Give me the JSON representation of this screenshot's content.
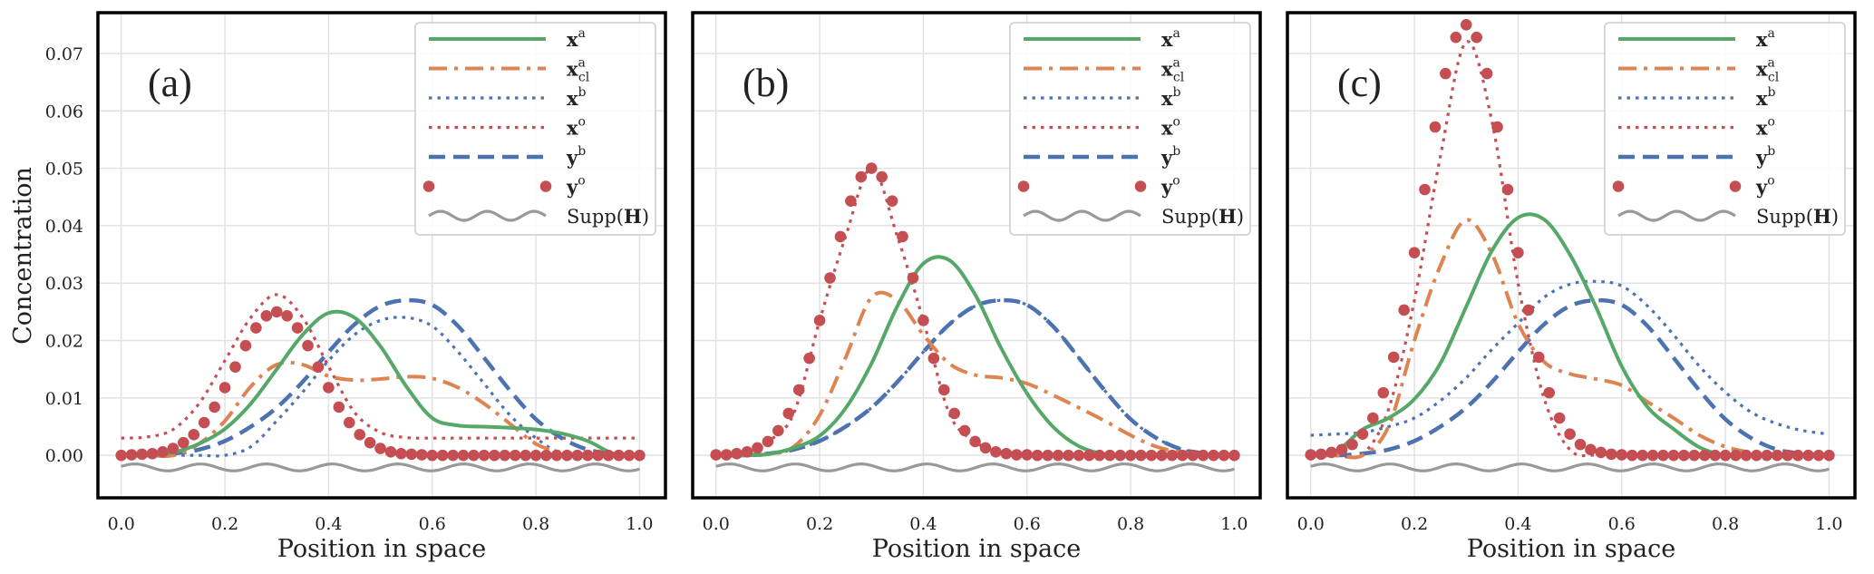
{
  "figure": {
    "ylabel": "Concentration",
    "xlabel": "Position in space"
  },
  "colors": {
    "x_a": "#55a868",
    "x_a_cl": "#dd8452",
    "x_b": "#4c72b0",
    "x_o": "#c44e52",
    "y_b": "#4c72b0",
    "y_o": "#c44e52",
    "supp": "#999999",
    "grid": "#e2e2e2",
    "frame": "#000000"
  },
  "legend": {
    "placement": "top-right",
    "entries": [
      {
        "key": "x_a",
        "base": "x",
        "sup": "a",
        "sub": "",
        "style": "solid"
      },
      {
        "key": "x_a_cl",
        "base": "x",
        "sup": "a",
        "sub": "cl",
        "style": "dashdot"
      },
      {
        "key": "x_b",
        "base": "x",
        "sup": "b",
        "sub": "",
        "style": "dotted"
      },
      {
        "key": "x_o",
        "base": "x",
        "sup": "o",
        "sub": "",
        "style": "dotted"
      },
      {
        "key": "y_b",
        "base": "y",
        "sup": "b",
        "sub": "",
        "style": "dashed"
      },
      {
        "key": "y_o",
        "base": "y",
        "sup": "o",
        "sub": "",
        "style": "markers"
      },
      {
        "key": "supp",
        "prefix": "Supp(",
        "base": "H",
        "suffix": ")",
        "style": "wavy"
      }
    ]
  },
  "chart_data": [
    {
      "type": "line",
      "panel_label": "(a)",
      "xlabel": "Position in space",
      "ylabel": "Concentration",
      "xlim": [
        -0.045,
        1.05
      ],
      "ylim": [
        -0.0074,
        0.0771
      ],
      "grid": true,
      "xticks": [
        "0.0",
        "0.2",
        "0.4",
        "0.6",
        "0.8",
        "1.0"
      ],
      "yticks": [
        "0.00",
        "0.01",
        "0.02",
        "0.03",
        "0.04",
        "0.05",
        "0.06",
        "0.07"
      ],
      "x": [
        0,
        0.05,
        0.1,
        0.15,
        0.2,
        0.25,
        0.3,
        0.35,
        0.4,
        0.45,
        0.5,
        0.55,
        0.6,
        0.65,
        0.7,
        0.75,
        0.8,
        0.85,
        0.9,
        0.95,
        1.0
      ],
      "series": [
        {
          "key": "x_a",
          "name": "x^a",
          "y": [
            0,
            0,
            0.0005,
            0.002,
            0.0046,
            0.009,
            0.015,
            0.021,
            0.0248,
            0.024,
            0.019,
            0.012,
            0.0065,
            0.0052,
            0.005,
            0.0048,
            0.0045,
            0.0038,
            0.0025,
            0.0003,
            0
          ]
        },
        {
          "key": "x_a_cl",
          "name": "x^a_cl",
          "y": [
            0,
            0,
            0,
            0.002,
            0.006,
            0.012,
            0.0158,
            0.0158,
            0.0138,
            0.0131,
            0.0133,
            0.0137,
            0.0134,
            0.0118,
            0.009,
            0.0055,
            0.002,
            0.0005,
            0,
            0,
            0
          ]
        },
        {
          "key": "x_b",
          "name": "x^b",
          "y": [
            0,
            0,
            0,
            0,
            0,
            0.0015,
            0.006,
            0.011,
            0.0165,
            0.021,
            0.0235,
            0.024,
            0.0225,
            0.018,
            0.0125,
            0.007,
            0.003,
            0.0003,
            0,
            0,
            0
          ]
        },
        {
          "key": "x_o",
          "name": "x^o",
          "y": [
            0.003,
            0.0032,
            0.0045,
            0.009,
            0.0165,
            0.024,
            0.028,
            0.024,
            0.0155,
            0.0075,
            0.004,
            0.0031,
            0.003,
            0.003,
            0.003,
            0.003,
            0.003,
            0.003,
            0.003,
            0.003,
            0.003
          ]
        },
        {
          "key": "y_b",
          "name": "y^b",
          "y": [
            0,
            0,
            0.0003,
            0.001,
            0.0025,
            0.005,
            0.0083,
            0.0128,
            0.018,
            0.0228,
            0.026,
            0.027,
            0.0262,
            0.0225,
            0.017,
            0.0113,
            0.0063,
            0.003,
            0.001,
            0.0003,
            0
          ]
        },
        {
          "key": "y_o",
          "name": "y^o",
          "x": [
            0,
            0.02,
            0.04,
            0.06,
            0.08,
            0.1,
            0.12,
            0.14,
            0.16,
            0.18,
            0.2,
            0.22,
            0.24,
            0.26,
            0.28,
            0.3,
            0.32,
            0.34,
            0.36,
            0.38,
            0.4,
            0.42,
            0.44,
            0.46,
            0.48,
            0.5,
            0.52,
            0.54,
            0.56,
            0.58,
            0.6,
            0.62,
            0.64,
            0.66,
            0.68,
            0.7,
            0.72,
            0.74,
            0.76,
            0.78,
            0.8,
            0.82,
            0.84,
            0.86,
            0.88,
            0.9,
            0.92,
            0.94,
            0.96,
            0.98,
            1.0
          ],
          "y": [
            0,
            0.0001,
            0.0002,
            0.0003,
            0.0006,
            0.0012,
            0.0022,
            0.0036,
            0.0057,
            0.0084,
            0.0118,
            0.0154,
            0.0191,
            0.0222,
            0.0243,
            0.025,
            0.0243,
            0.0222,
            0.0191,
            0.0154,
            0.0118,
            0.0084,
            0.0057,
            0.0036,
            0.0022,
            0.0012,
            0.0006,
            0.0003,
            0.0002,
            0.0001,
            0,
            0,
            0,
            0,
            0,
            0,
            0,
            0,
            0,
            0,
            0,
            0,
            0,
            0,
            0,
            0,
            0,
            0,
            0,
            0,
            0
          ]
        },
        {
          "key": "supp",
          "name": "Supp(H)",
          "x_range": [
            0,
            1
          ],
          "y_center": -0.0021,
          "amplitude": 0.0006,
          "period": 0.127
        }
      ]
    },
    {
      "type": "line",
      "panel_label": "(b)",
      "xlabel": "Position in space",
      "xlim": [
        -0.045,
        1.05
      ],
      "ylim": [
        -0.0074,
        0.0771
      ],
      "grid": true,
      "xticks": [
        "0.0",
        "0.2",
        "0.4",
        "0.6",
        "0.8",
        "1.0"
      ],
      "x": [
        0,
        0.05,
        0.1,
        0.15,
        0.2,
        0.25,
        0.3,
        0.35,
        0.4,
        0.45,
        0.5,
        0.55,
        0.6,
        0.65,
        0.7,
        0.75,
        0.8,
        0.85,
        0.9,
        0.95,
        1.0
      ],
      "series": [
        {
          "key": "x_a",
          "name": "x^a",
          "y": [
            0,
            0,
            0.0002,
            0.0013,
            0.0034,
            0.0082,
            0.016,
            0.026,
            0.0334,
            0.034,
            0.028,
            0.0187,
            0.0108,
            0.005,
            0.0016,
            0.0002,
            0,
            0,
            0,
            0,
            0
          ]
        },
        {
          "key": "x_a_cl",
          "name": "x^a_cl",
          "y": [
            0,
            0,
            0.0002,
            0.0015,
            0.007,
            0.017,
            0.0275,
            0.027,
            0.021,
            0.016,
            0.014,
            0.0135,
            0.0125,
            0.0105,
            0.0083,
            0.006,
            0.0035,
            0.0015,
            0.0005,
            0.0001,
            0
          ]
        },
        {
          "key": "x_b",
          "name": "x^b",
          "y": [
            0,
            0,
            0.0003,
            0.001,
            0.0025,
            0.005,
            0.0083,
            0.0128,
            0.018,
            0.0228,
            0.026,
            0.027,
            0.0262,
            0.0225,
            0.017,
            0.0113,
            0.0063,
            0.003,
            0.001,
            0.0003,
            0
          ]
        },
        {
          "key": "x_o",
          "name": "x^o",
          "y": [
            0.0001,
            0.0003,
            0.0024,
            0.0073,
            0.0235,
            0.0381,
            0.05,
            0.0381,
            0.0235,
            0.0073,
            0.0024,
            0.0003,
            0,
            0,
            0,
            0,
            0,
            0,
            0,
            0,
            0
          ]
        },
        {
          "key": "y_b",
          "name": "y^b",
          "y": [
            0,
            0,
            0.0003,
            0.001,
            0.0025,
            0.005,
            0.0083,
            0.0128,
            0.018,
            0.0228,
            0.026,
            0.027,
            0.0262,
            0.0225,
            0.017,
            0.0113,
            0.0063,
            0.003,
            0.001,
            0.0003,
            0
          ]
        },
        {
          "key": "y_o",
          "name": "y^o",
          "x": [
            0,
            0.02,
            0.04,
            0.06,
            0.08,
            0.1,
            0.12,
            0.14,
            0.16,
            0.18,
            0.2,
            0.22,
            0.24,
            0.26,
            0.28,
            0.3,
            0.32,
            0.34,
            0.36,
            0.38,
            0.4,
            0.42,
            0.44,
            0.46,
            0.48,
            0.5,
            0.52,
            0.54,
            0.56,
            0.58,
            0.6,
            0.62,
            0.64,
            0.66,
            0.68,
            0.7,
            0.72,
            0.74,
            0.76,
            0.78,
            0.8,
            0.82,
            0.84,
            0.86,
            0.88,
            0.9,
            0.92,
            0.94,
            0.96,
            0.98,
            1.0
          ],
          "y": [
            0.0001,
            0.0001,
            0.0003,
            0.0006,
            0.0013,
            0.0024,
            0.0043,
            0.0073,
            0.0114,
            0.0169,
            0.0235,
            0.0309,
            0.0381,
            0.0443,
            0.0485,
            0.05,
            0.0485,
            0.0443,
            0.0381,
            0.0309,
            0.0235,
            0.0169,
            0.0114,
            0.0073,
            0.0043,
            0.0024,
            0.0013,
            0.0006,
            0.0003,
            0.0001,
            0.0001,
            0,
            0,
            0,
            0,
            0,
            0,
            0,
            0,
            0,
            0,
            0,
            0,
            0,
            0,
            0,
            0,
            0,
            0,
            0,
            0
          ]
        },
        {
          "key": "supp",
          "name": "Supp(H)",
          "x_range": [
            0,
            1
          ],
          "y_center": -0.0021,
          "amplitude": 0.0006,
          "period": 0.127
        }
      ]
    },
    {
      "type": "line",
      "panel_label": "(c)",
      "xlabel": "Position in space",
      "xlim": [
        -0.045,
        1.05
      ],
      "ylim": [
        -0.0074,
        0.0771
      ],
      "grid": true,
      "xticks": [
        "0.0",
        "0.2",
        "0.4",
        "0.6",
        "0.8",
        "1.0"
      ],
      "x": [
        0,
        0.05,
        0.1,
        0.15,
        0.2,
        0.25,
        0.3,
        0.35,
        0.4,
        0.45,
        0.5,
        0.55,
        0.6,
        0.65,
        0.7,
        0.75,
        0.8,
        0.85,
        0.9,
        0.95,
        1.0
      ],
      "series": [
        {
          "key": "x_a",
          "name": "x^a",
          "y": [
            0,
            0.0008,
            0.0045,
            0.0065,
            0.0098,
            0.016,
            0.0259,
            0.0357,
            0.0414,
            0.0411,
            0.035,
            0.0259,
            0.0155,
            0.0084,
            0.0046,
            0.0014,
            0,
            0,
            0,
            0,
            0
          ]
        },
        {
          "key": "x_a_cl",
          "name": "x^a_cl",
          "y": [
            0,
            0,
            0,
            0.005,
            0.02,
            0.033,
            0.041,
            0.035,
            0.023,
            0.0163,
            0.0142,
            0.0133,
            0.0122,
            0.0093,
            0.0065,
            0.0035,
            0.0015,
            0.0005,
            0.0001,
            0,
            0
          ]
        },
        {
          "key": "x_b",
          "name": "x^b",
          "y": [
            0.0035,
            0.0037,
            0.004,
            0.005,
            0.0065,
            0.0095,
            0.0135,
            0.0185,
            0.023,
            0.0275,
            0.0298,
            0.0303,
            0.0295,
            0.026,
            0.021,
            0.0155,
            0.011,
            0.0075,
            0.0055,
            0.0043,
            0.0037
          ]
        },
        {
          "key": "x_o",
          "name": "x^o",
          "y": [
            0,
            0,
            0.0002,
            0.008,
            0.027,
            0.052,
            0.072,
            0.058,
            0.03,
            0.01,
            0.001,
            0,
            0,
            0,
            0,
            0,
            0,
            0,
            0,
            0,
            0
          ]
        },
        {
          "key": "y_b",
          "name": "y^b",
          "y": [
            0,
            0,
            0.0003,
            0.001,
            0.0025,
            0.005,
            0.0083,
            0.0128,
            0.018,
            0.0228,
            0.026,
            0.027,
            0.0262,
            0.0225,
            0.017,
            0.0113,
            0.0063,
            0.003,
            0.001,
            0.0003,
            0
          ]
        },
        {
          "key": "y_o",
          "name": "y^o",
          "x": [
            0,
            0.02,
            0.04,
            0.06,
            0.08,
            0.1,
            0.12,
            0.14,
            0.16,
            0.18,
            0.2,
            0.22,
            0.24,
            0.26,
            0.28,
            0.3,
            0.32,
            0.34,
            0.36,
            0.38,
            0.4,
            0.42,
            0.44,
            0.46,
            0.48,
            0.5,
            0.52,
            0.54,
            0.56,
            0.58,
            0.6,
            0.62,
            0.64,
            0.66,
            0.68,
            0.7,
            0.72,
            0.74,
            0.76,
            0.78,
            0.8,
            0.82,
            0.84,
            0.86,
            0.88,
            0.9,
            0.92,
            0.94,
            0.96,
            0.98,
            1.0
          ],
          "y": [
            0.0001,
            0.0002,
            0.0005,
            0.001,
            0.0019,
            0.0037,
            0.0065,
            0.0109,
            0.0171,
            0.0253,
            0.0353,
            0.0463,
            0.0572,
            0.0665,
            0.0728,
            0.075,
            0.0728,
            0.0665,
            0.0572,
            0.0463,
            0.0353,
            0.0253,
            0.0171,
            0.0109,
            0.0065,
            0.0037,
            0.0019,
            0.001,
            0.0005,
            0.0002,
            0.0001,
            0,
            0,
            0,
            0,
            0,
            0,
            0,
            0,
            0,
            0,
            0,
            0,
            0,
            0,
            0,
            0,
            0,
            0,
            0,
            0
          ]
        },
        {
          "key": "supp",
          "name": "Supp(H)",
          "x_range": [
            0,
            1
          ],
          "y_center": -0.0021,
          "amplitude": 0.0006,
          "period": 0.127
        }
      ]
    }
  ]
}
